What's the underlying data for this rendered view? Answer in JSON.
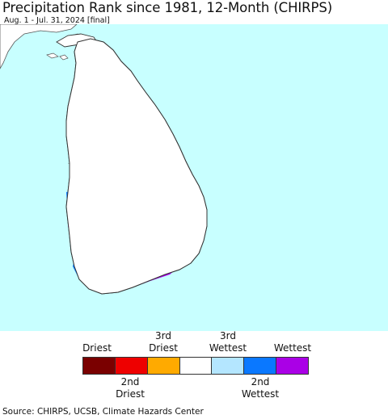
{
  "title": "Precipitation Rank since 1981, 12-Month (CHIRPS)",
  "subtitle": "Aug. 1 - Jul. 31, 2024 [final]",
  "legend": {
    "top_labels": [
      "Driest",
      "3rd\nDriest",
      "3rd\nWettest",
      "Wettest"
    ],
    "bottom_labels": [
      "2nd\nDriest",
      "2nd\nWettest"
    ],
    "colors": [
      "#7a0000",
      "#ee0000",
      "#ffaa00",
      "#ffffff",
      "#b4e6ff",
      "#0a78ff",
      "#aa00e6"
    ]
  },
  "source": "Source: CHIRPS, UCSB, Climate Hazards Center",
  "map_colors": {
    "ocean": "#c8ffff",
    "land": "#ffffff",
    "border": "#555555",
    "wettest": "#aa00e6",
    "second_wettest": "#0a78ff",
    "third_wettest": "#b4e6ff"
  }
}
